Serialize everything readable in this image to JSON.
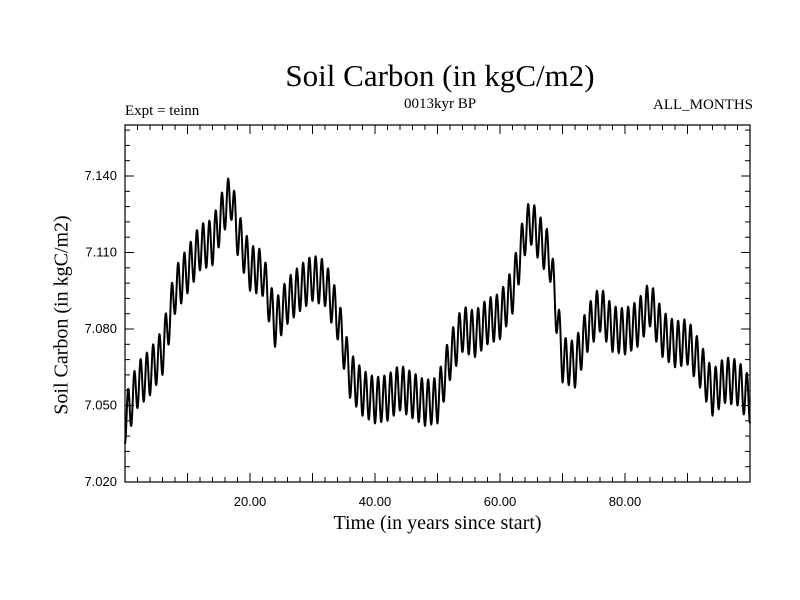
{
  "chart_data": {
    "type": "line",
    "title": "Soil Carbon (in kgC/m2)",
    "subtitle": "0013kyr BP",
    "left_annotation": "Expt = teinn",
    "right_annotation": "ALL_MONTHS",
    "xlabel": "Time (in years since start)",
    "ylabel": "Soil Carbon (in kgC/m2)",
    "xlim": [
      0,
      100
    ],
    "ylim": [
      7.02,
      7.16
    ],
    "x_ticks": [
      20,
      40,
      60,
      80
    ],
    "x_tick_labels": [
      "20.00",
      "40.00",
      "60.00",
      "80.00"
    ],
    "y_ticks": [
      7.02,
      7.05,
      7.08,
      7.11,
      7.14
    ],
    "y_tick_labels": [
      "7.020",
      "7.050",
      "7.080",
      "7.110",
      "7.140"
    ],
    "seasonal_amplitude": 0.009,
    "series": [
      {
        "name": "Soil Carbon",
        "color": "#000000",
        "x": [
          0,
          2,
          4,
          6,
          8,
          10,
          12,
          14,
          16,
          17,
          18,
          20,
          22,
          24,
          26,
          28,
          30,
          32,
          34,
          36,
          38,
          40,
          42,
          44,
          46,
          48,
          50,
          52,
          54,
          56,
          58,
          60,
          62,
          64,
          65,
          66,
          68,
          70,
          72,
          74,
          76,
          78,
          80,
          82,
          84,
          86,
          88,
          90,
          92,
          94,
          96,
          98,
          100
        ],
        "y": [
          7.044,
          7.058,
          7.063,
          7.071,
          7.095,
          7.103,
          7.112,
          7.114,
          7.128,
          7.132,
          7.118,
          7.104,
          7.102,
          7.082,
          7.091,
          7.096,
          7.1,
          7.098,
          7.085,
          7.062,
          7.055,
          7.052,
          7.053,
          7.057,
          7.054,
          7.051,
          7.052,
          7.069,
          7.08,
          7.078,
          7.083,
          7.085,
          7.095,
          7.118,
          7.122,
          7.117,
          7.108,
          7.068,
          7.066,
          7.08,
          7.088,
          7.08,
          7.079,
          7.082,
          7.09,
          7.078,
          7.074,
          7.075,
          7.066,
          7.055,
          7.06,
          7.059,
          7.052
        ]
      }
    ]
  }
}
